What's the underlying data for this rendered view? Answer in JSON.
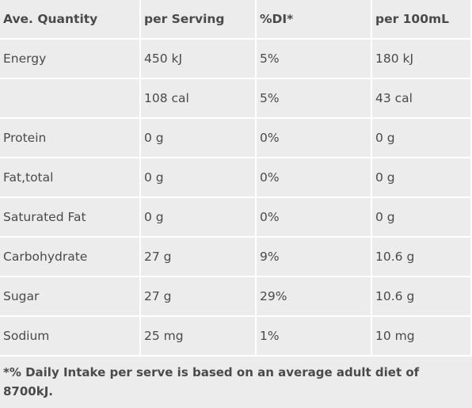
{
  "table": {
    "headers": [
      "Ave. Quantity",
      "per Serving",
      "%DI*",
      "per 100mL"
    ],
    "rows": [
      [
        "Energy",
        "450 kJ",
        "5%",
        "180 kJ"
      ],
      [
        "",
        "108 cal",
        "5%",
        "43 cal"
      ],
      [
        "Protein",
        "0 g",
        "0%",
        "0 g"
      ],
      [
        "Fat,total",
        "0 g",
        "0%",
        "0 g"
      ],
      [
        "Saturated Fat",
        "0 g",
        "0%",
        "0 g"
      ],
      [
        "Carbohydrate",
        "27 g",
        "9%",
        "10.6 g"
      ],
      [
        "Sugar",
        "27 g",
        "29%",
        "10.6 g"
      ],
      [
        "Sodium",
        "25 mg",
        "1%",
        "10 mg"
      ]
    ]
  },
  "footnote": "*% Daily Intake per serve is based on an average adult diet of 8700kJ.",
  "colors": {
    "cell_background": "#ececec",
    "divider": "#ffffff",
    "text": "#4a4a4a"
  }
}
